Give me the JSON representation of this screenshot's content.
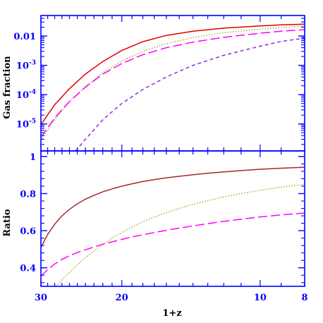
{
  "chart_data": [
    {
      "type": "line",
      "panel": "top",
      "ylabel": "Gas fraction",
      "yscale": "log",
      "ylim": [
        1.2e-06,
        0.05
      ],
      "y_ticks": [
        {
          "value": 0.01,
          "label": "0.01"
        },
        {
          "value": 0.001,
          "label": "10",
          "exp": "-3"
        },
        {
          "value": 0.0001,
          "label": "10",
          "exp": "-4"
        },
        {
          "value": 1e-05,
          "label": "10",
          "exp": "-5"
        }
      ],
      "x": [
        30,
        28,
        26,
        24,
        22,
        20,
        18,
        16,
        14,
        12,
        10,
        9,
        8
      ],
      "series": [
        {
          "style": "solid",
          "color": "#e00000",
          "values": [
            9.5e-06,
            4.5e-05,
            0.00016,
            0.0005,
            0.00135,
            0.0032,
            0.0064,
            0.0105,
            0.0145,
            0.0185,
            0.022,
            0.024,
            0.0255
          ]
        },
        {
          "style": "dotted",
          "color": "#9a9a00",
          "values": [
            2.7e-06,
            1.4e-05,
            5.7e-05,
            0.00019,
            0.00056,
            0.0014,
            0.003,
            0.0055,
            0.0088,
            0.013,
            0.017,
            0.0195,
            0.0215
          ]
        },
        {
          "style": "long-dash",
          "color": "#ff00ff",
          "values": [
            3.5e-06,
            1.6e-05,
            5.8e-05,
            0.00018,
            0.0005,
            0.00115,
            0.0023,
            0.004,
            0.0062,
            0.009,
            0.0125,
            0.0145,
            0.0165
          ]
        },
        {
          "style": "short-dash",
          "color": "#8a2be2",
          "x": [
            25.2,
            24,
            22,
            20,
            18,
            16,
            14,
            12,
            10,
            9,
            8
          ],
          "values": [
            1.2e-06,
            3e-06,
            1.4e-05,
            5e-05,
            0.00015,
            0.0004,
            0.001,
            0.0022,
            0.0045,
            0.0065,
            0.0085
          ]
        }
      ]
    },
    {
      "type": "line",
      "panel": "bottom",
      "ylabel": "Ratio",
      "xlabel": "1+z",
      "ylim": [
        0.3,
        1.03
      ],
      "y_ticks": [
        {
          "value": 1.0,
          "label": "1"
        },
        {
          "value": 0.8,
          "label": "0.8"
        },
        {
          "value": 0.6,
          "label": "0.6"
        },
        {
          "value": 0.4,
          "label": "0.4"
        }
      ],
      "x_ticks": [
        {
          "value": 30,
          "label": "30"
        },
        {
          "value": 20,
          "label": "20"
        },
        {
          "value": 10,
          "label": "10"
        },
        {
          "value": 8,
          "label": "8"
        }
      ],
      "xlim": [
        30,
        8
      ],
      "x": [
        30,
        29,
        28,
        27,
        26,
        25,
        24,
        23,
        22,
        21,
        20,
        19,
        18,
        17,
        16,
        15,
        14,
        13,
        12,
        11,
        10,
        9,
        8
      ],
      "series": [
        {
          "style": "solid",
          "color": "#a52a2a",
          "values": [
            0.51,
            0.58,
            0.635,
            0.68,
            0.715,
            0.745,
            0.77,
            0.79,
            0.81,
            0.825,
            0.84,
            0.853,
            0.865,
            0.875,
            0.885,
            0.893,
            0.902,
            0.91,
            0.917,
            0.924,
            0.931,
            0.937,
            0.942
          ]
        },
        {
          "style": "dotted",
          "color": "#9a9a00",
          "x": [
            27.8,
            27,
            26,
            25,
            24,
            23,
            22,
            21,
            20,
            19,
            18,
            17,
            16,
            15,
            14,
            13,
            12,
            11,
            10,
            9,
            8
          ],
          "values": [
            0.3,
            0.335,
            0.375,
            0.415,
            0.455,
            0.49,
            0.525,
            0.56,
            0.59,
            0.62,
            0.648,
            0.673,
            0.697,
            0.72,
            0.742,
            0.762,
            0.782,
            0.8,
            0.818,
            0.835,
            0.85
          ]
        },
        {
          "style": "long-dash",
          "color": "#ff00ff",
          "values": [
            0.355,
            0.39,
            0.42,
            0.445,
            0.465,
            0.482,
            0.497,
            0.512,
            0.527,
            0.54,
            0.553,
            0.566,
            0.578,
            0.59,
            0.602,
            0.614,
            0.626,
            0.638,
            0.65,
            0.662,
            0.674,
            0.685,
            0.695
          ]
        }
      ]
    }
  ],
  "style": {
    "axis_color": "#0000ff",
    "title_color": "#000000"
  }
}
